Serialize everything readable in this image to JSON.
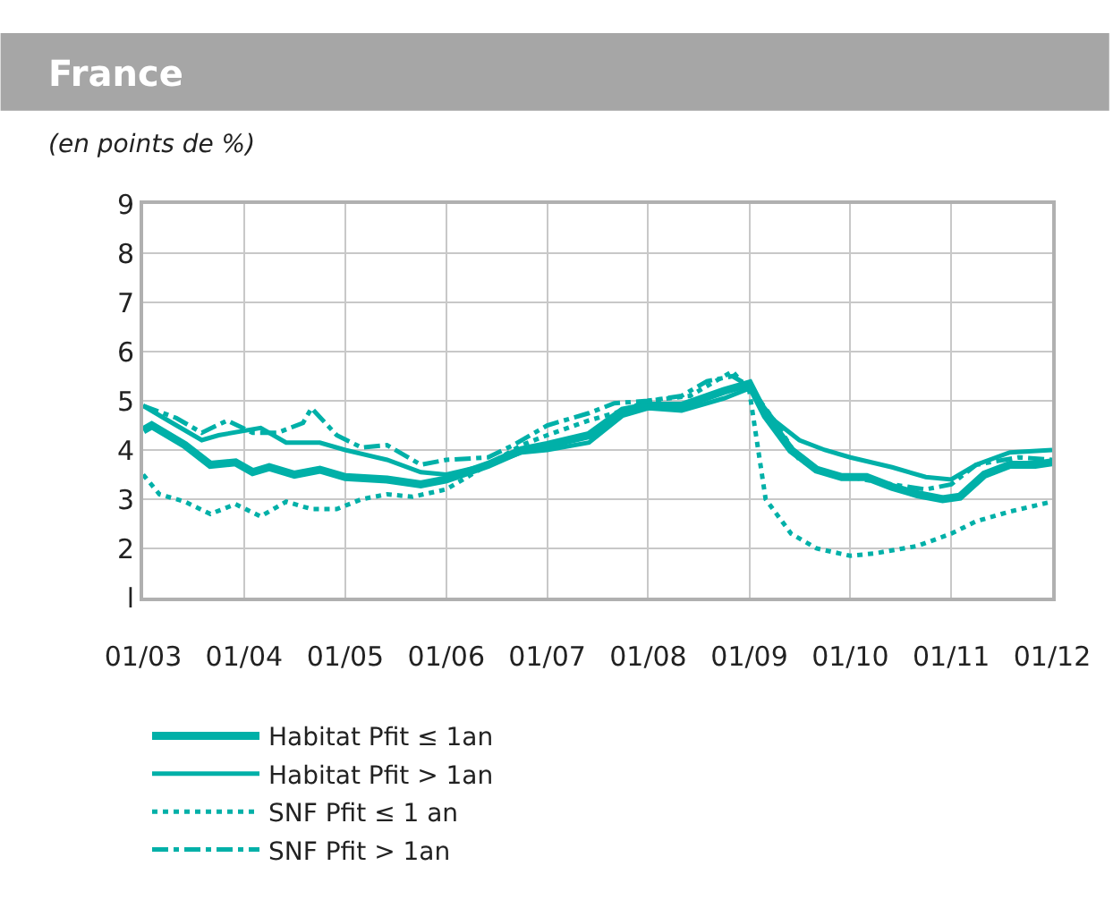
{
  "chart_data": {
    "type": "line",
    "title": "France",
    "subtitle": "(en points de %)",
    "xlim": [
      "2003-01",
      "2012-01"
    ],
    "xticks": [
      {
        "value": "2003-01",
        "label": "01/03"
      },
      {
        "value": "2004-01",
        "label": "01/04"
      },
      {
        "value": "2005-01",
        "label": "01/05"
      },
      {
        "value": "2006-01",
        "label": "01/06"
      },
      {
        "value": "2007-01",
        "label": "01/07"
      },
      {
        "value": "2008-01",
        "label": "01/08"
      },
      {
        "value": "2009-01",
        "label": "01/09"
      },
      {
        "value": "2010-01",
        "label": "01/10"
      },
      {
        "value": "2011-01",
        "label": "01/11"
      },
      {
        "value": "2012-01",
        "label": "01/12"
      }
    ],
    "ylim": [
      1,
      9
    ],
    "yticks": [
      {
        "value": 1,
        "label": "l"
      },
      2,
      3,
      4,
      5,
      6,
      7,
      8,
      9
    ],
    "grid": true,
    "legend": "bottom",
    "series": [
      {
        "name": "Habitat Pfit ≤ 1an",
        "color": "#00b0a8",
        "line_style": "solid",
        "x": [
          "2003-01",
          "2003-02",
          "2003-06",
          "2003-09",
          "2003-12",
          "2004-02",
          "2004-04",
          "2004-07",
          "2004-10",
          "2005-01",
          "2005-06",
          "2005-10",
          "2006-01",
          "2006-06",
          "2006-10",
          "2007-01",
          "2007-06",
          "2007-10",
          "2008-01",
          "2008-05",
          "2008-10",
          "2009-01",
          "2009-03",
          "2009-06",
          "2009-09",
          "2009-12",
          "2010-03",
          "2010-06",
          "2010-09",
          "2010-12",
          "2011-02",
          "2011-05",
          "2011-08",
          "2011-11",
          "2012-01"
        ],
        "values": [
          4.4,
          4.5,
          4.1,
          3.7,
          3.75,
          3.55,
          3.65,
          3.5,
          3.6,
          3.45,
          3.4,
          3.3,
          3.4,
          3.7,
          4.0,
          4.1,
          4.3,
          4.8,
          4.9,
          4.9,
          5.2,
          5.35,
          4.7,
          4.0,
          3.6,
          3.45,
          3.45,
          3.25,
          3.1,
          3.0,
          3.05,
          3.5,
          3.7,
          3.7,
          3.75
        ]
      },
      {
        "name": "Habitat Pfit > 1an",
        "color": "#00b0a8",
        "line_style": "solid",
        "x": [
          "2003-01",
          "2003-04",
          "2003-08",
          "2003-10",
          "2004-03",
          "2004-06",
          "2004-10",
          "2005-01",
          "2005-06",
          "2005-10",
          "2006-01",
          "2006-06",
          "2006-10",
          "2007-01",
          "2007-06",
          "2007-10",
          "2008-01",
          "2008-05",
          "2008-10",
          "2009-01",
          "2009-04",
          "2009-07",
          "2009-10",
          "2010-01",
          "2010-06",
          "2010-10",
          "2011-01",
          "2011-04",
          "2011-08",
          "2012-01"
        ],
        "values": [
          4.9,
          4.6,
          4.2,
          4.3,
          4.45,
          4.15,
          4.15,
          4.0,
          3.8,
          3.55,
          3.5,
          3.7,
          3.95,
          4.0,
          4.15,
          4.7,
          4.85,
          4.8,
          5.05,
          5.25,
          4.6,
          4.2,
          4.0,
          3.85,
          3.65,
          3.45,
          3.4,
          3.7,
          3.95,
          4.0
        ]
      },
      {
        "name": "SNF Pfit ≤ 1 an",
        "color": "#00b0a8",
        "line_style": "dotted",
        "x": [
          "2003-01",
          "2003-03",
          "2003-06",
          "2003-09",
          "2003-12",
          "2004-03",
          "2004-06",
          "2004-09",
          "2004-12",
          "2005-03",
          "2005-06",
          "2005-09",
          "2006-01",
          "2006-06",
          "2006-10",
          "2007-01",
          "2007-06",
          "2007-10",
          "2008-01",
          "2008-06",
          "2008-09",
          "2008-11",
          "2009-01",
          "2009-03",
          "2009-06",
          "2009-09",
          "2010-01",
          "2010-04",
          "2010-09",
          "2011-01",
          "2011-04",
          "2011-08",
          "2012-01"
        ],
        "values": [
          3.5,
          3.1,
          2.95,
          2.7,
          2.9,
          2.65,
          2.95,
          2.8,
          2.8,
          3.0,
          3.1,
          3.05,
          3.2,
          3.7,
          4.1,
          4.3,
          4.6,
          4.8,
          5.0,
          5.1,
          5.4,
          5.6,
          5.2,
          3.0,
          2.3,
          2.0,
          1.85,
          1.9,
          2.05,
          2.3,
          2.55,
          2.75,
          2.95
        ]
      },
      {
        "name": "SNF Pfit > 1an",
        "color": "#00b0a8",
        "line_style": "dashdot",
        "x": [
          "2003-01",
          "2003-05",
          "2003-08",
          "2003-11",
          "2004-02",
          "2004-05",
          "2004-08",
          "2004-09",
          "2004-12",
          "2005-03",
          "2005-06",
          "2005-10",
          "2006-01",
          "2006-06",
          "2006-09",
          "2007-01",
          "2007-06",
          "2007-09",
          "2008-01",
          "2008-05",
          "2008-08",
          "2008-11",
          "2009-01",
          "2009-04",
          "2009-07",
          "2009-10",
          "2010-01",
          "2010-06",
          "2010-10",
          "2011-01",
          "2011-04",
          "2011-09",
          "2012-01"
        ],
        "values": [
          4.9,
          4.65,
          4.35,
          4.6,
          4.35,
          4.35,
          4.55,
          4.85,
          4.3,
          4.05,
          4.1,
          3.7,
          3.8,
          3.85,
          4.1,
          4.5,
          4.75,
          4.95,
          5.0,
          5.1,
          5.4,
          5.5,
          5.3,
          4.6,
          3.8,
          3.55,
          3.45,
          3.3,
          3.2,
          3.3,
          3.7,
          3.85,
          3.8
        ]
      }
    ]
  }
}
